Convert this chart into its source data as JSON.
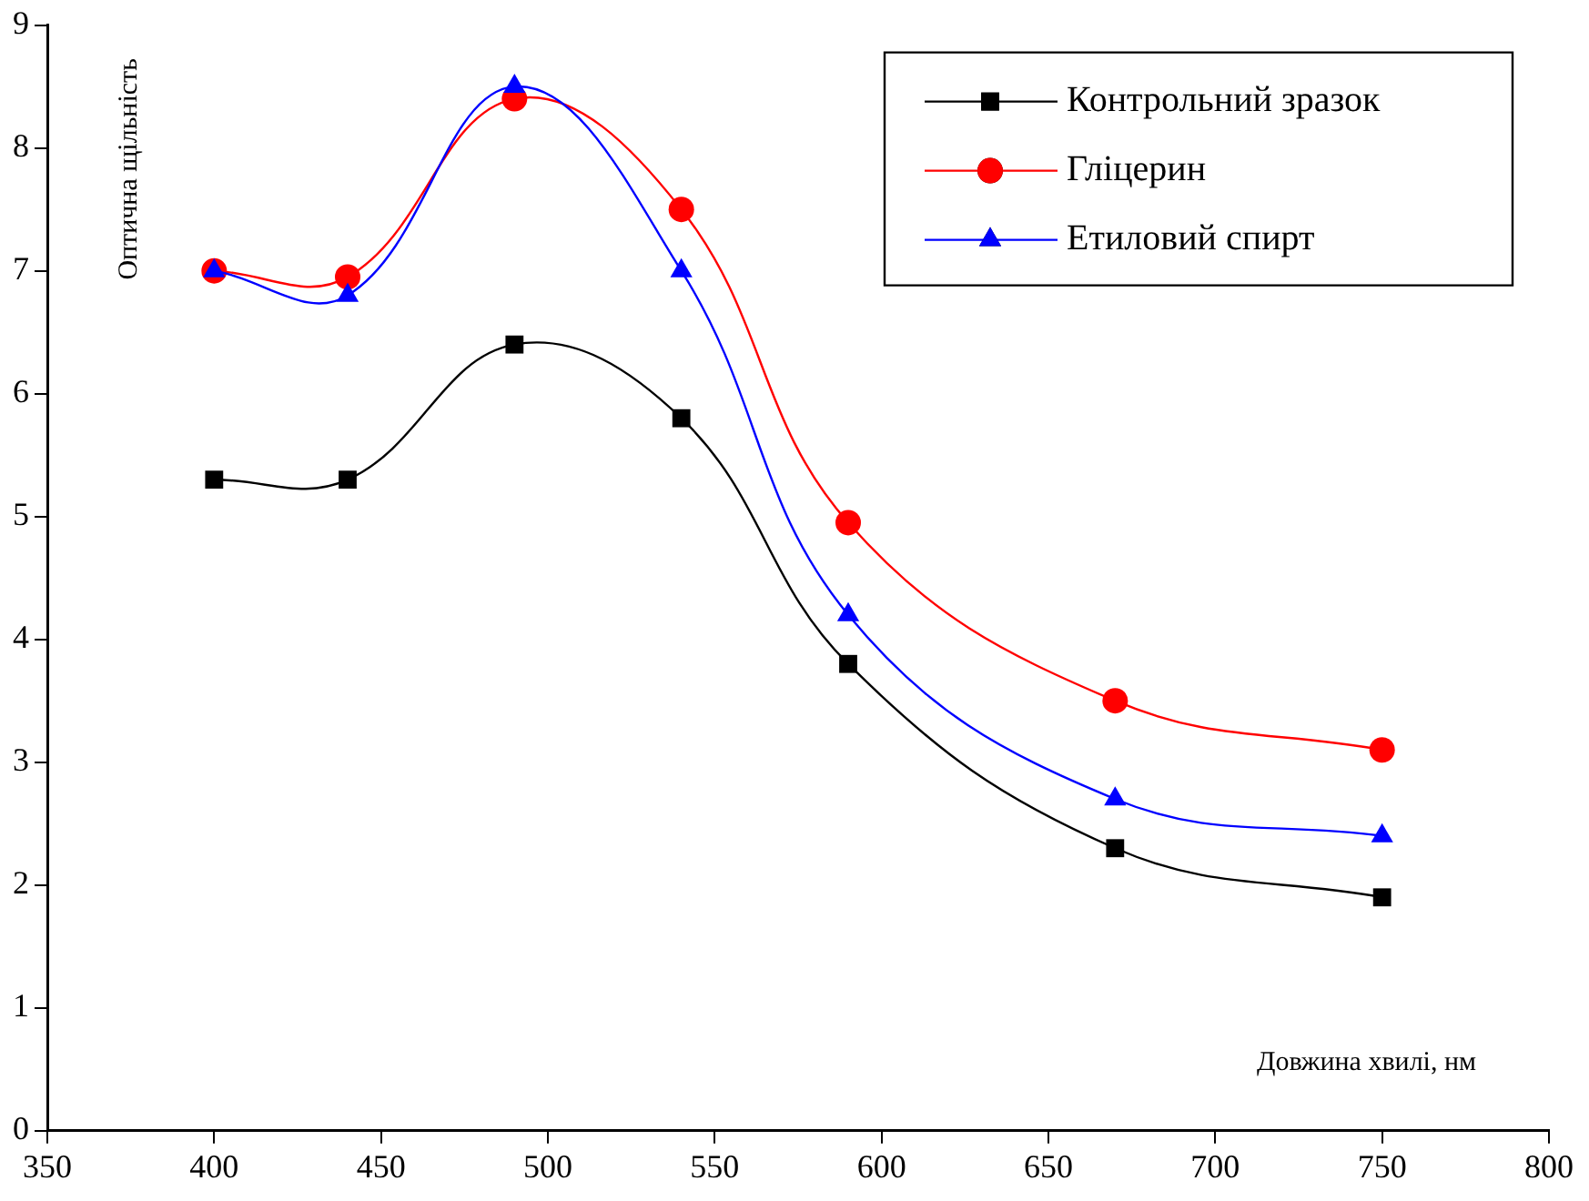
{
  "chart_data": {
    "type": "line",
    "xlabel": "Довжина хвилі, нм",
    "ylabel": "Оптична щільність",
    "x": [
      400,
      440,
      490,
      540,
      590,
      670,
      750
    ],
    "series": [
      {
        "name": "Контрольний зразок",
        "color": "#000000",
        "marker": "square",
        "values": [
          5.3,
          5.3,
          6.4,
          5.8,
          3.8,
          2.3,
          1.9
        ]
      },
      {
        "name": "Гліцерин",
        "color": "#ff0000",
        "marker": "circle",
        "values": [
          7.0,
          6.95,
          8.4,
          7.5,
          4.95,
          3.5,
          3.1
        ]
      },
      {
        "name": "Етиловий спирт",
        "color": "#0000ff",
        "marker": "triangle",
        "values": [
          7.0,
          6.8,
          8.5,
          7.0,
          4.2,
          2.7,
          2.4
        ]
      }
    ],
    "xlim": [
      350,
      800
    ],
    "xticks": [
      350,
      400,
      450,
      500,
      550,
      600,
      650,
      700,
      750,
      800
    ],
    "ylim": [
      0,
      9
    ],
    "yticks": [
      0,
      1,
      2,
      3,
      4,
      5,
      6,
      7,
      8,
      9
    ],
    "grid": false,
    "legend": "top right",
    "line_style": "solid"
  }
}
